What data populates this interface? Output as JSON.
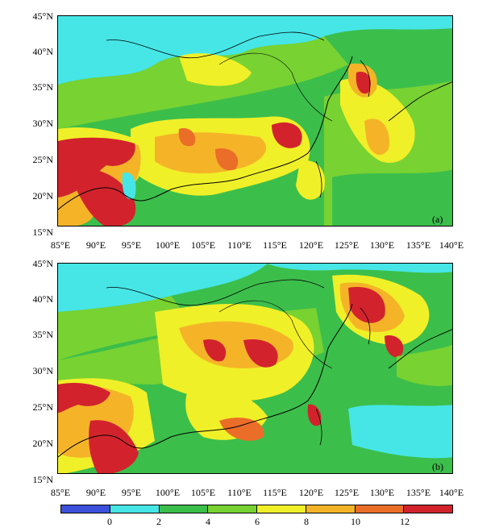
{
  "panels": [
    {
      "id": "a",
      "label": "(a)",
      "lat_labels": [
        "45°N",
        "40°N",
        "35°N",
        "30°N",
        "25°N",
        "20°N",
        "15°N"
      ],
      "lon_labels": [
        "85°E",
        "90°E",
        "95°E",
        "100°E",
        "105°E",
        "110°E",
        "115°E",
        "120°E",
        "125°E",
        "130°E",
        "135°E",
        "140°E"
      ]
    },
    {
      "id": "b",
      "label": "(b)",
      "lat_labels": [
        "45°N",
        "40°N",
        "35°N",
        "30°N",
        "25°N",
        "20°N",
        "15°N"
      ],
      "lon_labels": [
        "85°E",
        "90°E",
        "95°E",
        "100°E",
        "105°E",
        "110°E",
        "115°E",
        "120°E",
        "125°E",
        "130°E",
        "135°E",
        "140°E"
      ]
    }
  ],
  "colorbar": {
    "colors": [
      "#3c50dc",
      "#46e6e6",
      "#3cbe4b",
      "#78d232",
      "#f0f028",
      "#f5b428",
      "#eb6e28",
      "#d2232d"
    ],
    "tick_labels": [
      "0",
      "2",
      "4",
      "6",
      "8",
      "10",
      "12"
    ]
  },
  "colors": {
    "ocean_low": "#46e6e6",
    "green": "#3cbe4b",
    "light_green": "#78d232",
    "yellow": "#f0f028",
    "orange": "#f5b428",
    "dark_orange": "#eb6e28",
    "red": "#d2232d",
    "border": "#000000"
  }
}
